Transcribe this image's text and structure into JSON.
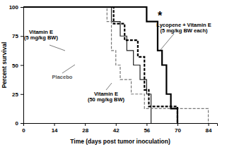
{
  "chart_data": {
    "type": "line",
    "x_label": "Time (days post tumor inoculation)",
    "y_label": "Percent survival",
    "xlim": [
      0,
      88
    ],
    "xticks": [
      0,
      14,
      28,
      42,
      56,
      70,
      84
    ],
    "ylim": [
      0,
      100
    ],
    "yticks": [
      0,
      25,
      50,
      75,
      100
    ],
    "grid": false,
    "series": [
      {
        "name": "Vitamin E (5 mg/kg BW)",
        "color": "#222222",
        "line_style": "solid",
        "marker": "none",
        "x": [
          0,
          40,
          44,
          47,
          50,
          53,
          56,
          58
        ],
        "values": [
          100,
          87.5,
          75,
          62.5,
          50,
          37.5,
          25,
          0
        ]
      },
      {
        "name": "Placebo",
        "color": "#777777",
        "line_style": "dashed",
        "marker": "none",
        "x": [
          0,
          38,
          40,
          42,
          44,
          49,
          55,
          84
        ],
        "values": [
          100,
          87.5,
          62.5,
          50,
          37.5,
          25,
          12.5,
          0
        ]
      },
      {
        "name": "Vitamin E (50 mg/kg BW)",
        "color": "#000000",
        "line_style": "dashed",
        "marker": "none",
        "x": [
          0,
          41,
          46,
          52,
          55,
          57,
          70
        ],
        "values": [
          100,
          85.7,
          71.4,
          57.1,
          28.6,
          14.3,
          0
        ]
      },
      {
        "name": "Lycopene + Vitamin E (5 mg/kg BW each)",
        "color": "#000000",
        "line_style": "solid",
        "marker": "none",
        "x": [
          0,
          56,
          61,
          63,
          65,
          67,
          70
        ],
        "values": [
          100,
          87.5,
          62.5,
          50,
          25,
          12.5,
          0
        ]
      }
    ],
    "annotations": [
      {
        "text": "*"
      }
    ]
  }
}
